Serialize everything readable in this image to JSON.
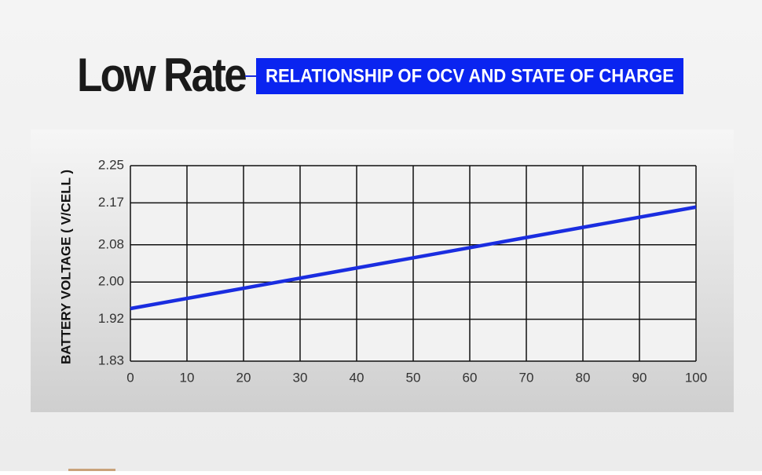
{
  "chart_data": {
    "type": "line",
    "title": "Low Rate",
    "subtitle": "RELATIONSHIP OF OCV AND STATE OF CHARGE",
    "y_label": "BATTERY VOLTAGE ( V/CELL )",
    "x": [
      0,
      100
    ],
    "series": [
      {
        "color": "#1a2de0",
        "values": [
          1.943,
          2.161
        ]
      }
    ],
    "xlim": [
      0,
      100
    ],
    "xticks": [
      0,
      10,
      20,
      30,
      40,
      50,
      60,
      70,
      80,
      90,
      100
    ],
    "ylim": [
      1.83,
      2.25
    ],
    "yticks": [
      1.83,
      1.92,
      {
        "value": 2,
        "label": "2.00"
      },
      2.08,
      2.17,
      2.25
    ],
    "grid": true
  }
}
